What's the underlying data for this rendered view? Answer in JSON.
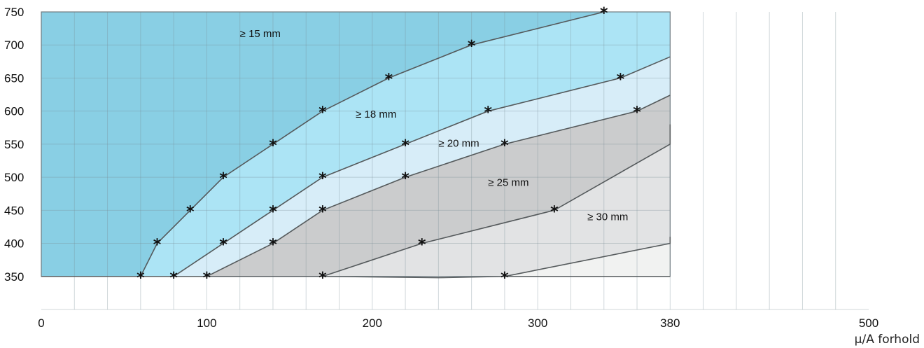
{
  "chart_data": {
    "type": "area",
    "xlabel": "µ/A forhold",
    "ylabel": "",
    "xlim": [
      0,
      500
    ],
    "ylim": [
      300,
      750
    ],
    "x_ticks": [
      {
        "value": 0,
        "label": "0"
      },
      {
        "value": 100,
        "label": "100"
      },
      {
        "value": 200,
        "label": "200"
      },
      {
        "value": 300,
        "label": "300"
      },
      {
        "value": 380,
        "label": "380"
      },
      {
        "value": 500,
        "label": "500"
      }
    ],
    "y_ticks": [
      {
        "value": 350,
        "label": "350"
      },
      {
        "value": 400,
        "label": "400"
      },
      {
        "value": 450,
        "label": "450"
      },
      {
        "value": 500,
        "label": "500"
      },
      {
        "value": 550,
        "label": "550"
      },
      {
        "value": 600,
        "label": "600"
      },
      {
        "value": 650,
        "label": "650"
      },
      {
        "value": 700,
        "label": "700"
      },
      {
        "value": 750,
        "label": "750"
      }
    ],
    "grid": true,
    "regions": [
      {
        "label": "≥ 15 mm",
        "color": "#89cfe4"
      },
      {
        "label": "≥ 18 mm",
        "color": "#ace4f5"
      },
      {
        "label": "≥ 20 mm",
        "color": "#d7edf8"
      },
      {
        "label": "≥ 25 mm",
        "color": "#cbcccd"
      },
      {
        "label": "≥ 30 mm",
        "color": "#e2e3e4"
      },
      {
        "label": "",
        "color": "#f1f2f1"
      }
    ],
    "boundaries": [
      {
        "points": [
          [
            60,
            350
          ],
          [
            70,
            400
          ],
          [
            90,
            450
          ],
          [
            110,
            500
          ],
          [
            140,
            550
          ],
          [
            170,
            600
          ],
          [
            210,
            650
          ],
          [
            260,
            700
          ],
          [
            340,
            750
          ]
        ]
      },
      {
        "points": [
          [
            80,
            350
          ],
          [
            110,
            400
          ],
          [
            140,
            450
          ],
          [
            170,
            500
          ],
          [
            220,
            550
          ],
          [
            270,
            600
          ],
          [
            350,
            650
          ],
          [
            380,
            682
          ]
        ]
      },
      {
        "points": [
          [
            100,
            350
          ],
          [
            140,
            400
          ],
          [
            170,
            450
          ],
          [
            220,
            500
          ],
          [
            280,
            550
          ],
          [
            360,
            600
          ],
          [
            380,
            624
          ]
        ]
      },
      {
        "points": [
          [
            170,
            350
          ],
          [
            230,
            400
          ],
          [
            310,
            450
          ],
          [
            380,
            550
          ],
          [
            380,
            580
          ]
        ]
      },
      {
        "points": [
          [
            280,
            350
          ],
          [
            380,
            400
          ],
          [
            380,
            410
          ]
        ]
      }
    ],
    "lower_edge": [
      [
        0,
        350
      ],
      [
        100,
        350
      ],
      [
        170,
        350
      ],
      [
        240,
        348
      ],
      [
        280,
        350
      ],
      [
        380,
        350
      ]
    ]
  }
}
